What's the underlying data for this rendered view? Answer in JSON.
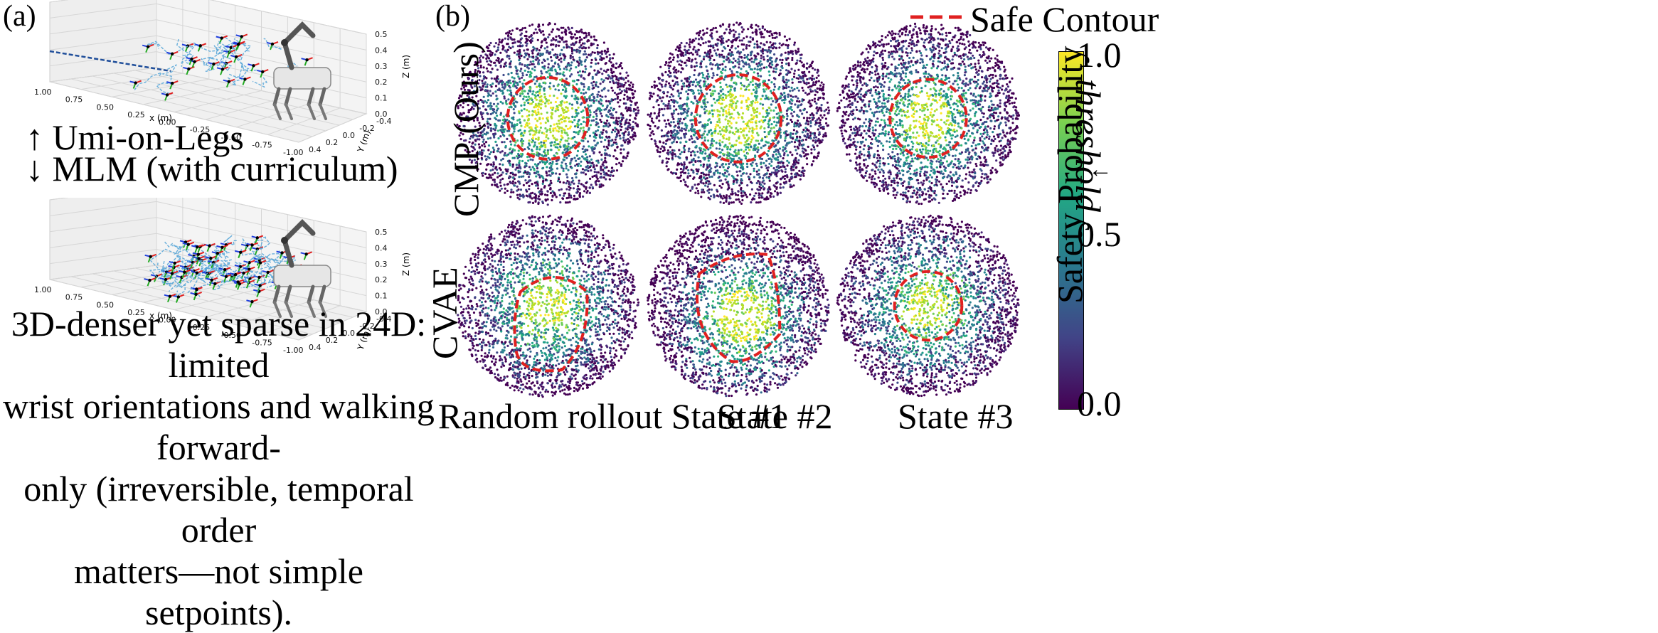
{
  "panel_a": {
    "label": "(a)",
    "plot_top": {
      "x_axis_label": "x (m)",
      "y_axis_label": "Y (m)",
      "z_axis_label": "Z (m)",
      "x_ticks": [
        "1.00",
        "0.75",
        "0.50",
        "0.25",
        "0.00",
        "-0.25",
        "-0.50",
        "-0.75",
        "-1.00"
      ],
      "y_ticks": [
        "-0.4",
        "-0.2",
        "0.0",
        "0.2",
        "0.4"
      ],
      "z_ticks": [
        "0.0",
        "0.1",
        "0.2",
        "0.3",
        "0.4",
        "0.5"
      ]
    },
    "plot_bottom": {
      "x_axis_label": "x (m)",
      "y_axis_label": "Y (m)",
      "z_axis_label": "Z (m)",
      "x_ticks": [
        "1.00",
        "0.75",
        "0.50",
        "0.25",
        "0.00",
        "-0.25",
        "-0.50",
        "-0.75",
        "-1.00"
      ],
      "y_ticks": [
        "-0.4",
        "-0.2",
        "0.0",
        "0.2",
        "0.4"
      ],
      "z_ticks": [
        "0.0",
        "0.1",
        "0.2",
        "0.3",
        "0.4",
        "0.5"
      ]
    },
    "legend_up": "↑ Umi-on-Legs",
    "legend_down": "↓ MLM (with curriculum)",
    "caption_lines": [
      "3D-denser yet sparse in 24D: limited",
      "wrist orientations and walking forward-",
      "only (irreversible, temporal order",
      "matters—not simple setpoints)."
    ]
  },
  "panel_b": {
    "label": "(b)",
    "legend": "Safe Contour",
    "row_labels": [
      "CMP (Ours)",
      "CVAE"
    ],
    "column_labels": [
      "Random rollout State #1",
      "State #2",
      "State #3"
    ],
    "colorbar": {
      "label": "Safety Probability",
      "threshold_label": "threshold",
      "tick_labels": [
        "1.0",
        "0.5",
        "0.0"
      ]
    }
  },
  "colors": {
    "safe_contour": "#e02020",
    "trajectory": "#5aa7d8",
    "colormap": [
      "#440154",
      "#3b528b",
      "#21918c",
      "#5ec962",
      "#fde725"
    ]
  },
  "chart_data": [
    {
      "type": "scatter",
      "title": "",
      "xlabel": "x (m)",
      "ylabel": "Y (m)",
      "zlabel": "Z (m)",
      "xlim": [
        -1.0,
        1.0
      ],
      "ylim": [
        -0.4,
        0.4
      ],
      "zlim": [
        0.0,
        0.5
      ],
      "series": [
        {
          "name": "Umi-on-Legs"
        }
      ]
    },
    {
      "type": "scatter",
      "title": "",
      "xlabel": "x (m)",
      "ylabel": "Y (m)",
      "zlabel": "Z (m)",
      "xlim": [
        -1.0,
        1.0
      ],
      "ylim": [
        -0.4,
        0.4
      ],
      "zlim": [
        0.0,
        0.5
      ],
      "series": [
        {
          "name": "MLM (with curriculum)"
        }
      ]
    },
    {
      "type": "heatmap",
      "title": "",
      "rows": [
        "CMP (Ours)",
        "CVAE"
      ],
      "columns": [
        "Random rollout State #1",
        "State #2",
        "State #3"
      ],
      "colorbar_range": [
        0.0,
        1.0
      ],
      "threshold": 0.7,
      "contour_radius": [
        [
          0.44,
          0.47,
          0.42
        ],
        [
          0.4,
          0.48,
          0.37
        ]
      ],
      "contour_center": [
        [
          [
            0.0,
            0.05
          ],
          [
            0.0,
            0.05
          ],
          [
            0.0,
            0.05
          ]
        ],
        [
          [
            0.0,
            0.0
          ],
          [
            0.05,
            0.12
          ],
          [
            0.0,
            0.0
          ]
        ]
      ]
    }
  ]
}
